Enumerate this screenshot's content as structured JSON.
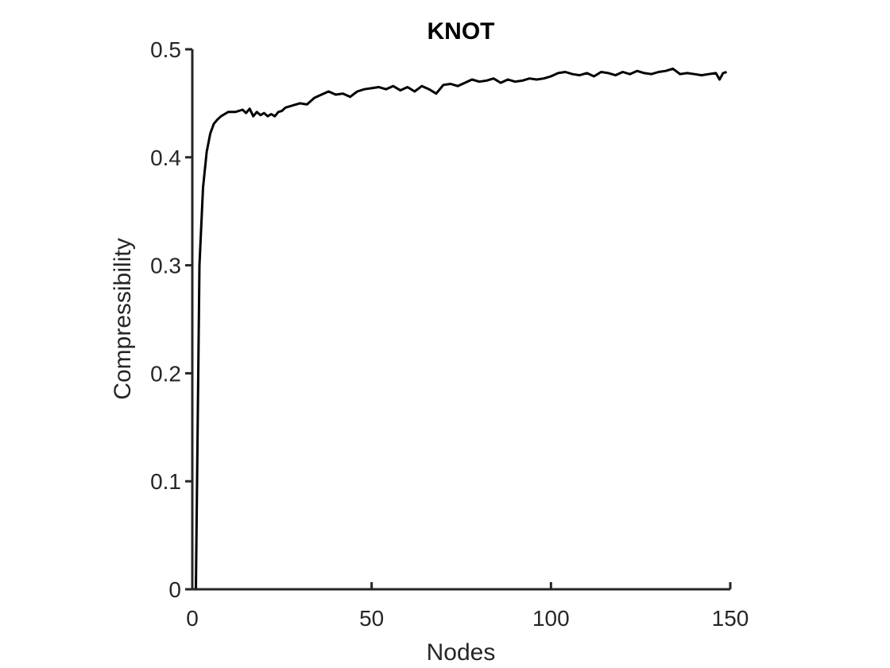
{
  "chart_data": {
    "type": "line",
    "title": "KNOT",
    "xlabel": "Nodes",
    "ylabel": "Compressibility",
    "xlim": [
      0,
      150
    ],
    "ylim": [
      0,
      0.5
    ],
    "xticks": [
      0,
      50,
      100,
      150
    ],
    "xtick_labels": [
      "0",
      "50",
      "100",
      "150"
    ],
    "yticks": [
      0,
      0.1,
      0.2,
      0.3,
      0.4,
      0.5
    ],
    "ytick_labels": [
      "0",
      "0.1",
      "0.2",
      "0.3",
      "0.4",
      "0.5"
    ],
    "grid": false,
    "line_color": "#000000",
    "axis_color": "#262626",
    "series": [
      {
        "x": [
          1,
          2,
          3,
          4,
          5,
          6,
          7,
          8,
          9,
          10,
          12,
          14,
          15,
          16,
          17,
          18,
          19,
          20,
          21,
          22,
          23,
          24,
          25,
          26,
          28,
          30,
          32,
          34,
          36,
          38,
          40,
          42,
          44,
          46,
          48,
          50,
          52,
          54,
          56,
          58,
          60,
          62,
          64,
          66,
          68,
          70,
          72,
          74,
          76,
          78,
          80,
          82,
          84,
          86,
          88,
          90,
          92,
          94,
          96,
          98,
          100,
          102,
          104,
          106,
          108,
          110,
          112,
          114,
          116,
          118,
          120,
          122,
          124,
          126,
          128,
          130,
          132,
          134,
          136,
          138,
          140,
          142,
          144,
          146,
          147,
          148,
          149
        ],
        "y": [
          0.0,
          0.3,
          0.372,
          0.405,
          0.422,
          0.431,
          0.435,
          0.438,
          0.44,
          0.442,
          0.442,
          0.444,
          0.441,
          0.445,
          0.438,
          0.442,
          0.439,
          0.441,
          0.438,
          0.44,
          0.438,
          0.442,
          0.443,
          0.446,
          0.448,
          0.45,
          0.449,
          0.455,
          0.458,
          0.461,
          0.458,
          0.459,
          0.456,
          0.461,
          0.463,
          0.464,
          0.465,
          0.463,
          0.466,
          0.462,
          0.465,
          0.461,
          0.466,
          0.463,
          0.459,
          0.467,
          0.468,
          0.466,
          0.469,
          0.472,
          0.47,
          0.471,
          0.473,
          0.469,
          0.472,
          0.47,
          0.471,
          0.473,
          0.472,
          0.473,
          0.475,
          0.478,
          0.479,
          0.477,
          0.476,
          0.478,
          0.475,
          0.479,
          0.478,
          0.476,
          0.479,
          0.477,
          0.48,
          0.478,
          0.477,
          0.479,
          0.48,
          0.482,
          0.477,
          0.478,
          0.477,
          0.476,
          0.477,
          0.478,
          0.472,
          0.478,
          0.479
        ]
      }
    ]
  }
}
